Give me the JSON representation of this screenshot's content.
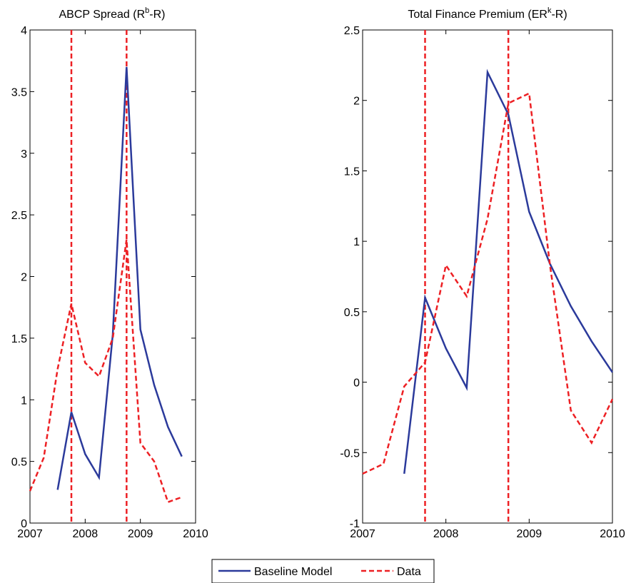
{
  "chart_data": [
    {
      "type": "line",
      "title": "ABCP Spread (R",
      "title_sup": "b",
      "title_tail": "-R)",
      "xlim": [
        2007,
        2010
      ],
      "ylim": [
        0,
        4
      ],
      "xticks": [
        2007,
        2008,
        2009,
        2010
      ],
      "yticks": [
        0,
        0.5,
        1,
        1.5,
        2,
        2.5,
        3,
        3.5,
        4
      ],
      "ytick_labels": [
        "0",
        "0.5",
        "1",
        "1.5",
        "2",
        "2.5",
        "3",
        "3.5",
        "4"
      ],
      "grid": false,
      "vlines": [
        2007.75,
        2008.75
      ],
      "series": [
        {
          "name": "Baseline Model",
          "color": "#2B3A9B",
          "style": "solid",
          "x": [
            2007.5,
            2007.75,
            2008.0,
            2008.25,
            2008.5,
            2008.75,
            2009.0,
            2009.25,
            2009.5,
            2009.75
          ],
          "y": [
            0.27,
            0.9,
            0.56,
            0.37,
            1.53,
            3.7,
            1.57,
            1.12,
            0.78,
            0.54
          ]
        },
        {
          "name": "Data",
          "color": "#ED2024",
          "style": "dashed",
          "x": [
            2007.0,
            2007.25,
            2007.5,
            2007.75,
            2008.0,
            2008.25,
            2008.5,
            2008.75,
            2009.0,
            2009.25,
            2009.5,
            2009.75
          ],
          "y": [
            0.26,
            0.53,
            1.25,
            1.78,
            1.3,
            1.19,
            1.5,
            2.3,
            0.65,
            0.5,
            0.17,
            0.21
          ]
        }
      ]
    },
    {
      "type": "line",
      "title": "Total Finance Premium (ER",
      "title_sup": "k",
      "title_tail": "-R)",
      "xlim": [
        2007,
        2010
      ],
      "ylim": [
        -1,
        2.5
      ],
      "xticks": [
        2007,
        2008,
        2009,
        2010
      ],
      "yticks": [
        -1,
        -0.5,
        0,
        0.5,
        1,
        1.5,
        2,
        2.5
      ],
      "ytick_labels": [
        "-1",
        "-0.5",
        "0",
        "0.5",
        "1",
        "1.5",
        "2",
        "2.5"
      ],
      "grid": false,
      "vlines": [
        2007.75,
        2008.75
      ],
      "series": [
        {
          "name": "Baseline Model",
          "color": "#2B3A9B",
          "style": "solid",
          "x": [
            2007.5,
            2007.75,
            2008.0,
            2008.25,
            2008.5,
            2008.75,
            2009.0,
            2009.25,
            2009.5,
            2009.75,
            2010.0
          ],
          "y": [
            -0.65,
            0.6,
            0.24,
            -0.04,
            2.2,
            1.9,
            1.21,
            0.84,
            0.54,
            0.29,
            0.07
          ]
        },
        {
          "name": "Data",
          "color": "#ED2024",
          "style": "dashed",
          "x": [
            2007.0,
            2007.25,
            2007.5,
            2007.75,
            2008.0,
            2008.25,
            2008.5,
            2008.75,
            2009.0,
            2009.25,
            2009.5,
            2009.75,
            2010.0
          ],
          "y": [
            -0.65,
            -0.58,
            -0.03,
            0.14,
            0.83,
            0.61,
            1.16,
            1.98,
            2.05,
            0.83,
            -0.2,
            -0.43,
            -0.12
          ]
        }
      ]
    }
  ],
  "legend": {
    "placement": "bottom-center",
    "items": [
      {
        "label": "Baseline Model",
        "color": "#2B3A9B",
        "style": "solid"
      },
      {
        "label": "Data",
        "color": "#ED2024",
        "style": "dashed"
      }
    ]
  }
}
